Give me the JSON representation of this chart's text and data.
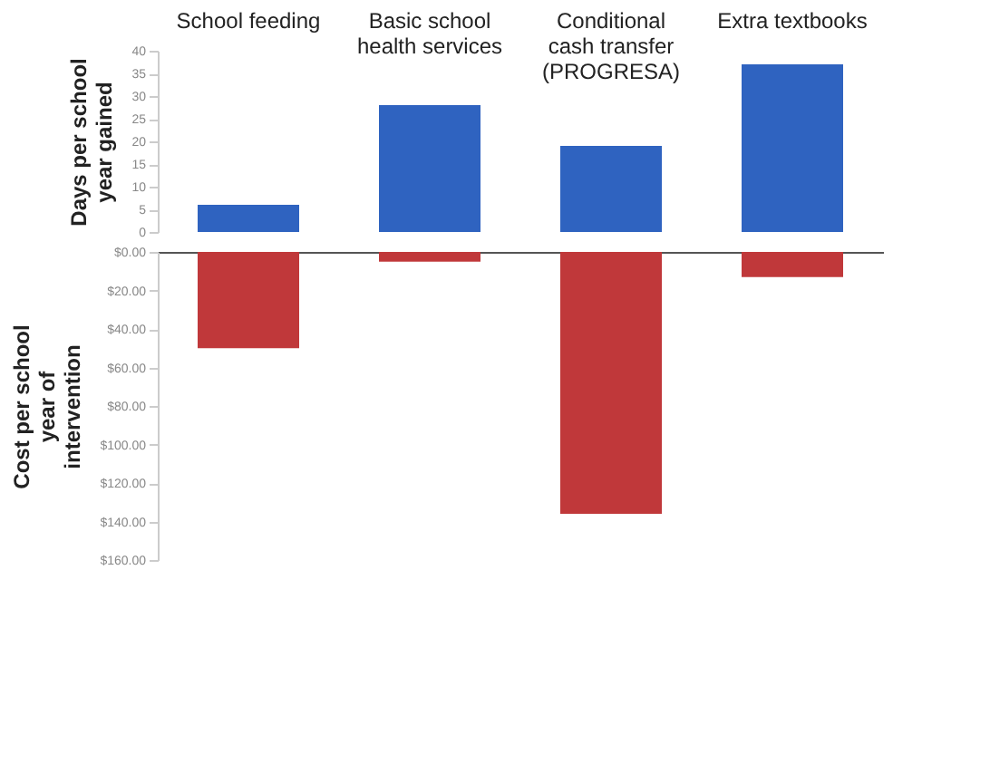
{
  "chart_data": [
    {
      "type": "bar",
      "ylabel": "Days per school year gained",
      "categories": [
        "School feeding",
        "Basic school health services",
        "Conditional cash transfer (PROGRESA)",
        "Extra textbooks"
      ],
      "series": [
        {
          "color": "#2f63c0",
          "values": [
            6,
            28,
            19,
            37
          ]
        }
      ],
      "ylim": [
        0,
        40
      ],
      "yticks": [
        0,
        5,
        10,
        15,
        20,
        25,
        30,
        35,
        40
      ],
      "grid": false
    },
    {
      "type": "bar",
      "ylabel": "Cost per school year of intervention",
      "categories": [
        "School feeding",
        "Basic school health services",
        "Conditional cash transfer (PROGRESA)",
        "Extra textbooks"
      ],
      "series": [
        {
          "color": "#c0383a",
          "values": [
            50,
            5,
            136,
            13
          ]
        }
      ],
      "ylim": [
        160,
        0
      ],
      "yticks": [
        {
          "value": 0,
          "label": "$0.00"
        },
        {
          "value": 20,
          "label": "$20.00"
        },
        {
          "value": 40,
          "label": "$40.00"
        },
        {
          "value": 60,
          "label": "$60.00"
        },
        {
          "value": 80,
          "label": "$80.00"
        },
        {
          "value": 100,
          "label": "$100.00"
        },
        {
          "value": 120,
          "label": "$120.00"
        },
        {
          "value": 140,
          "label": "$140.00"
        },
        {
          "value": 160,
          "label": "$160.00"
        }
      ],
      "grid": false,
      "tick_labels": "y"
    }
  ]
}
